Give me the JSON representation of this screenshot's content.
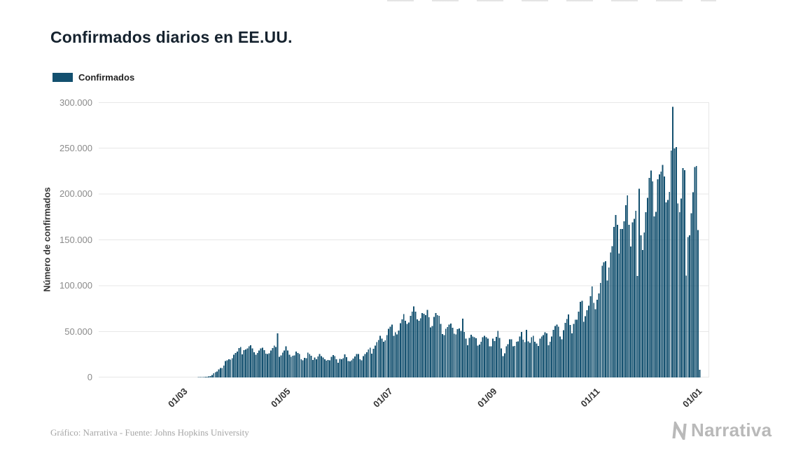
{
  "legend": {
    "label": "Confirmados"
  },
  "footer": {
    "credit": "Gráfico: Narrativa - Fuente: Johns Hopkins University"
  },
  "logo": {
    "text": "Narrativa"
  },
  "colors": {
    "bar": "#13506F",
    "grid": "#e7e7e7",
    "axis_text": "#8a8a8a",
    "title_text": "#15222e"
  },
  "chart_data": {
    "type": "bar",
    "title": "Confirmados diarios en EE.UU.",
    "ylabel": "Número de confirmados",
    "xlabel": "",
    "ylim": [
      0,
      300000
    ],
    "grid": true,
    "legend_position": "top-left",
    "ytick_labels": [
      "0",
      "50.000",
      "100.000",
      "150.000",
      "200.000",
      "250.000",
      "300.000"
    ],
    "xtick_labels": [
      "01/03",
      "01/05",
      "01/07",
      "01/09",
      "01/11",
      "01/01"
    ],
    "xtick_indices": [
      39,
      100,
      161,
      223,
      284,
      345
    ],
    "series": [
      {
        "name": "Confirmados",
        "values": [
          0,
          0,
          0,
          0,
          0,
          0,
          0,
          0,
          0,
          0,
          0,
          0,
          0,
          0,
          0,
          0,
          0,
          0,
          0,
          0,
          0,
          0,
          0,
          0,
          0,
          0,
          0,
          0,
          0,
          0,
          0,
          0,
          0,
          0,
          0,
          0,
          0,
          0,
          0,
          30,
          20,
          35,
          55,
          70,
          100,
          120,
          150,
          190,
          270,
          370,
          430,
          540,
          690,
          720,
          1050,
          1360,
          2630,
          4540,
          5840,
          6640,
          8650,
          10400,
          10400,
          12800,
          17800,
          18700,
          19800,
          19400,
          20900,
          24900,
          26700,
          28300,
          32100,
          33300,
          25300,
          29600,
          30600,
          31700,
          33800,
          35100,
          31700,
          27600,
          25000,
          26900,
          29500,
          31600,
          32300,
          29900,
          26100,
          25500,
          26500,
          29300,
          32000,
          34900,
          33100,
          48200,
          22500,
          24200,
          27200,
          29500,
          34000,
          29300,
          25000,
          22600,
          23800,
          24100,
          28400,
          26900,
          25500,
          19700,
          18600,
          21500,
          20900,
          27100,
          25500,
          23800,
          18900,
          21800,
          20000,
          23000,
          25400,
          23300,
          21600,
          19800,
          18400,
          18900,
          18700,
          22600,
          24300,
          23300,
          19800,
          16100,
          20300,
          19700,
          21100,
          25200,
          22300,
          17900,
          17600,
          18800,
          20800,
          22800,
          25600,
          25500,
          19900,
          18600,
          23200,
          25600,
          27300,
          30500,
          32400,
          26100,
          31400,
          34700,
          38400,
          40900,
          45300,
          42500,
          38800,
          40600,
          46000,
          53000,
          55200,
          57700,
          45300,
          49200,
          47100,
          51100,
          59300,
          63200,
          68900,
          61700,
          58300,
          59900,
          67100,
          71700,
          77300,
          71600,
          63200,
          61800,
          64500,
          70100,
          69600,
          68000,
          73500,
          65500,
          54400,
          56300,
          65900,
          70100,
          68000,
          67000,
          58400,
          47500,
          46300,
          53100,
          55100,
          57500,
          58600,
          54100,
          47800,
          46800,
          52500,
          53300,
          50900,
          64100,
          49500,
          42300,
          35100,
          43200,
          46500,
          44600,
          44000,
          42700,
          34600,
          35900,
          39000,
          43800,
          45300,
          44000,
          42200,
          34000,
          33800,
          42200,
          39700,
          44300,
          50600,
          43200,
          31500,
          23400,
          26400,
          34100,
          36200,
          41600,
          41600,
          33900,
          34400,
          39000,
          39300,
          44700,
          49600,
          41400,
          38500,
          52100,
          39400,
          37600,
          43800,
          45300,
          38900,
          36900,
          34400,
          42200,
          44700,
          46100,
          49200,
          48200,
          35300,
          39100,
          44800,
          52000,
          56200,
          57500,
          55500,
          44600,
          41700,
          51500,
          59500,
          63600,
          68800,
          57400,
          48200,
          58400,
          62800,
          62800,
          71700,
          82600,
          83700,
          60800,
          66800,
          73200,
          78400,
          88500,
          99300,
          81200,
          74300,
          84600,
          91500,
          103100,
          121900,
          125600,
          126700,
          105900,
          120000,
          136300,
          143200,
          164000,
          177200,
          166600,
          135200,
          161900,
          162000,
          170200,
          187800,
          198500,
          166600,
          142800,
          169200,
          172900,
          181500,
          110600,
          205600,
          154900,
          138900,
          157900,
          180100,
          195700,
          217700,
          225600,
          213900,
          175700,
          180400,
          215900,
          221300,
          224500,
          231800,
          219200,
          190900,
          193600,
          202300,
          247400,
          295100,
          249700,
          251000,
          189700,
          180200,
          195000,
          228100,
          226100,
          110900,
          152900,
          155100,
          178900,
          202100,
          229400,
          230600,
          160500,
          8500
        ]
      }
    ]
  }
}
